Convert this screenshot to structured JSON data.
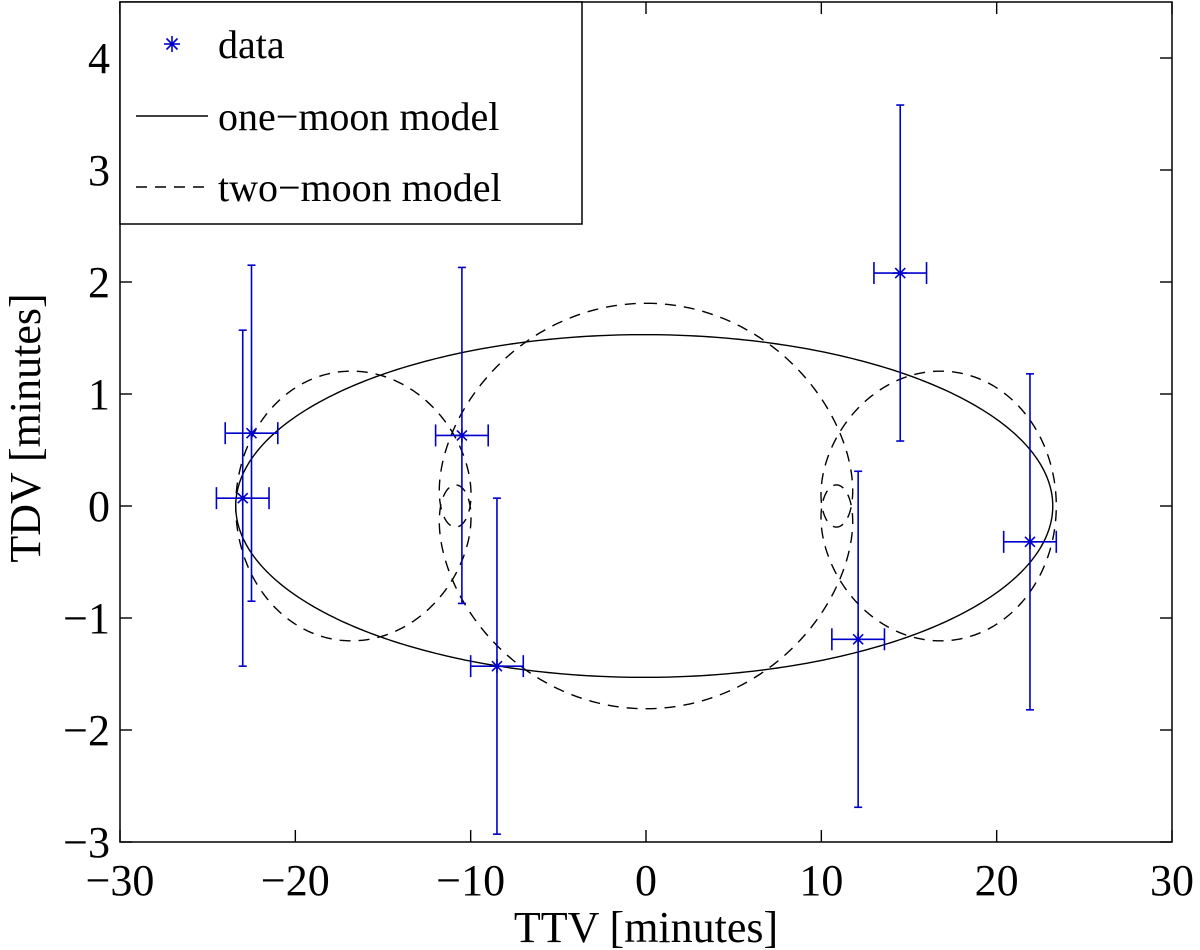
{
  "chart_data": {
    "type": "scatter",
    "title": "",
    "xlabel": "TTV [minutes]",
    "ylabel": "TDV [minutes]",
    "xlim": [
      -30,
      30
    ],
    "ylim": [
      -3,
      4.5
    ],
    "xticks": [
      -30,
      -20,
      -10,
      0,
      10,
      20,
      30
    ],
    "yticks": [
      -3,
      -2,
      -1,
      0,
      1,
      2,
      3,
      4
    ],
    "xtick_labels": [
      "−30",
      "−20",
      "−10",
      "0",
      "10",
      "20",
      "30"
    ],
    "ytick_labels": [
      "−3",
      "−2",
      "−1",
      "0",
      "1",
      "2",
      "3",
      "4"
    ],
    "grid": false,
    "legend": {
      "position": "top-left",
      "entries": [
        {
          "label": "data",
          "marker": "*",
          "color": "#0000cc"
        },
        {
          "label": "one−moon model",
          "linestyle": "solid",
          "color": "#000000"
        },
        {
          "label": "two−moon model",
          "linestyle": "dashed",
          "color": "#000000"
        }
      ]
    },
    "data_points": [
      {
        "x": -22.5,
        "y": 0.65,
        "xerr": 1.5,
        "yerr": 1.5
      },
      {
        "x": -23.0,
        "y": 0.07,
        "xerr": 1.5,
        "yerr": 1.5
      },
      {
        "x": -10.5,
        "y": 0.63,
        "xerr": 1.5,
        "yerr": 1.5
      },
      {
        "x": -8.5,
        "y": -1.43,
        "xerr": 1.5,
        "yerr": 1.5
      },
      {
        "x": 12.1,
        "y": -1.19,
        "xerr": 1.5,
        "yerr": 1.5
      },
      {
        "x": 14.5,
        "y": 2.08,
        "xerr": 1.5,
        "yerr": 1.5
      },
      {
        "x": 21.9,
        "y": -0.32,
        "xerr": 1.5,
        "yerr": 1.5
      }
    ],
    "one_moon_model": {
      "type": "ellipse",
      "center_x": -0.1,
      "center_y": 0.0,
      "semi_x": 23.3,
      "semi_y": 1.53
    },
    "two_moon_model": {
      "type": "epicycle",
      "formula": "x = A*sin(t) + a*sin(k*t); y = B*cos(t) + b*cos(k*t)",
      "A": 18.8,
      "B": 0.9,
      "a": 4.6,
      "b": 0.91,
      "k": 5
    }
  }
}
